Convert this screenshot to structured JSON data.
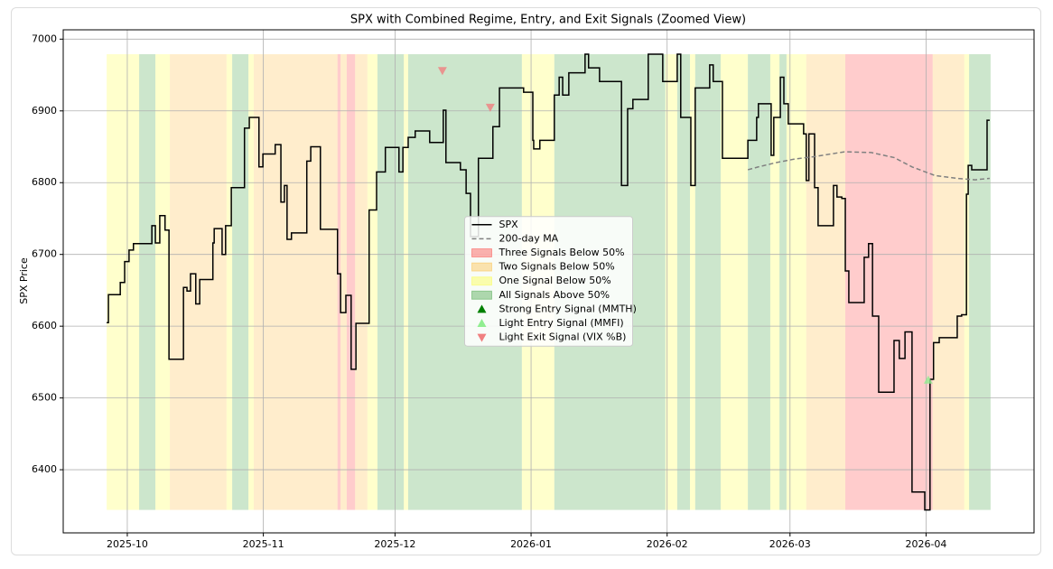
{
  "chart_data": {
    "type": "line",
    "title": "SPX with Combined Regime, Entry, and Exit Signals (Zoomed View)",
    "y_label": "SPX Price",
    "xlim": [
      -14.6,
      206.6
    ],
    "ylim": [
      6312,
      7013
    ],
    "xticks": [
      {
        "value": 0,
        "label": "2025-10"
      },
      {
        "value": 31,
        "label": "2025-11"
      },
      {
        "value": 61,
        "label": "2025-12"
      },
      {
        "value": 92,
        "label": "2026-01"
      },
      {
        "value": 123,
        "label": "2026-02"
      },
      {
        "value": 151,
        "label": "2026-03"
      },
      {
        "value": 182,
        "label": "2026-04"
      }
    ],
    "yticks": [
      6400,
      6500,
      6600,
      6700,
      6800,
      6900,
      7000
    ],
    "grid": true,
    "legend_loc": "center",
    "band_alpha": 0.2,
    "series": [
      {
        "name": "SPX",
        "type": "line",
        "drawstyle": "steps-post",
        "linestyle": "solid",
        "color": "#000000",
        "x": [
          -4.7,
          -4.3,
          -1.6,
          -0.6,
          0.4,
          1.4,
          5.6,
          6.4,
          7.4,
          8.6,
          9.5,
          12.8,
          13.6,
          14.4,
          15.6,
          16.5,
          19.5,
          19.8,
          21.6,
          22.4,
          23.7,
          26.7,
          27.8,
          30.0,
          30.9,
          33.7,
          35.0,
          35.8,
          36.4,
          37.4,
          40.9,
          41.8,
          44.0,
          47.9,
          48.6,
          49.8,
          51.0,
          52.1,
          55.1,
          56.8,
          58.8,
          61.9,
          62.8,
          64.0,
          65.6,
          68.9,
          72.0,
          72.6,
          75.9,
          77.2,
          78.2,
          80.0,
          83.3,
          84.8,
          90.3,
          92.4,
          92.6,
          94.0,
          97.3,
          98.4,
          99.2,
          100.6,
          104.3,
          105.1,
          107.6,
          112.6,
          114.0,
          115.2,
          118.7,
          122.0,
          125.3,
          126.1,
          128.4,
          129.4,
          132.7,
          133.5,
          135.6,
          141.4,
          143.4,
          143.8,
          146.7,
          147.3,
          148.8,
          149.6,
          150.6,
          154.1,
          154.7,
          155.3,
          156.6,
          157.4,
          160.9,
          161.7,
          162.8,
          163.6,
          164.4,
          167.9,
          168.9,
          169.8,
          171.2,
          174.7,
          175.9,
          177.2,
          178.8,
          181.7,
          182.9,
          183.7,
          185.0,
          189.1,
          190.1,
          191.2,
          191.6,
          192.4,
          195.9,
          196.5
        ],
        "values": [
          6605,
          6644,
          6661,
          6690,
          6706,
          6715,
          6740,
          6716,
          6754,
          6734,
          6554,
          6654,
          6649,
          6673,
          6631,
          6665,
          6716,
          6736,
          6700,
          6740,
          6793,
          6876,
          6891,
          6822,
          6840,
          6853,
          6773,
          6796,
          6721,
          6730,
          6830,
          6850,
          6735,
          6673,
          6619,
          6643,
          6540,
          6604,
          6762,
          6815,
          6849,
          6815,
          6849,
          6863,
          6872,
          6856,
          6901,
          6828,
          6818,
          6785,
          6725,
          6834,
          6878,
          6932,
          6926,
          6859,
          6847,
          6859,
          6922,
          6947,
          6922,
          6953,
          6979,
          6960,
          6941,
          6796,
          6903,
          6916,
          6979,
          6941,
          6979,
          6891,
          6796,
          6932,
          6964,
          6941,
          6834,
          6859,
          6891,
          6910,
          6838,
          6891,
          6947,
          6910,
          6882,
          6868,
          6803,
          6868,
          6793,
          6740,
          6796,
          6780,
          6778,
          6677,
          6633,
          6696,
          6715,
          6614,
          6508,
          6580,
          6555,
          6592,
          6369,
          6344,
          6526,
          6577,
          6584,
          6614,
          6616,
          6784,
          6824,
          6818,
          6887,
          6887
        ]
      },
      {
        "name": "200-day MA",
        "type": "line",
        "drawstyle": "default",
        "linestyle": "dashed",
        "color": "#808080",
        "x": [
          141.4,
          143.8,
          147.9,
          152.1,
          156.2,
          163.4,
          169.5,
          174.7,
          178.8,
          184.0,
          189.1,
          193.2,
          196.5
        ],
        "values": [
          6818,
          6822,
          6828,
          6833,
          6836,
          6843,
          6842,
          6835,
          6822,
          6810,
          6806,
          6804,
          6806
        ]
      },
      {
        "name": "Three Signals Below 50%",
        "type": "band",
        "color": "#ff0000",
        "starts": [
          47.9,
          50.0,
          163.6
        ],
        "ends": [
          48.6,
          51.9,
          183.5
        ]
      },
      {
        "name": "Two Signals Below 50%",
        "type": "band",
        "color": "#ffa500",
        "starts": [
          9.7,
          28.8,
          48.6,
          51.9,
          154.7,
          183.5
        ],
        "ends": [
          22.6,
          47.9,
          50.0,
          54.7,
          163.6,
          190.7
        ]
      },
      {
        "name": "One Signal Below 50%",
        "type": "band",
        "color": "#ffff00",
        "starts": [
          -4.7,
          6.4,
          22.6,
          27.6,
          54.7,
          63.0,
          89.9,
          122.6,
          128.2,
          135.2,
          146.5,
          150.2,
          190.7
        ],
        "ends": [
          2.7,
          9.7,
          23.9,
          28.8,
          57.0,
          64.0,
          97.3,
          125.3,
          129.4,
          141.4,
          148.6,
          154.7,
          191.8
        ]
      },
      {
        "name": "All Signals Above 50%",
        "type": "band",
        "color": "#008000",
        "starts": [
          2.7,
          23.9,
          57.0,
          64.0,
          97.3,
          125.3,
          129.4,
          141.4,
          148.6,
          191.8
        ],
        "ends": [
          6.4,
          27.6,
          63.0,
          89.9,
          122.6,
          128.2,
          135.2,
          146.5,
          150.2,
          196.7
        ]
      },
      {
        "name": "Strong Entry Signal (MMTH)",
        "type": "marker",
        "marker": "up",
        "color": "#008000",
        "x": [],
        "values": []
      },
      {
        "name": "Light Entry Signal (MMFI)",
        "type": "marker",
        "marker": "up",
        "color": "#90ee90",
        "x": [
          182.5
        ],
        "values": [
          6525
        ]
      },
      {
        "name": "Light Exit Signal (VIX %B)",
        "type": "marker",
        "marker": "down",
        "color": "#f08080",
        "x": [
          71.8,
          82.7
        ],
        "values": [
          6956,
          6905
        ]
      }
    ]
  }
}
